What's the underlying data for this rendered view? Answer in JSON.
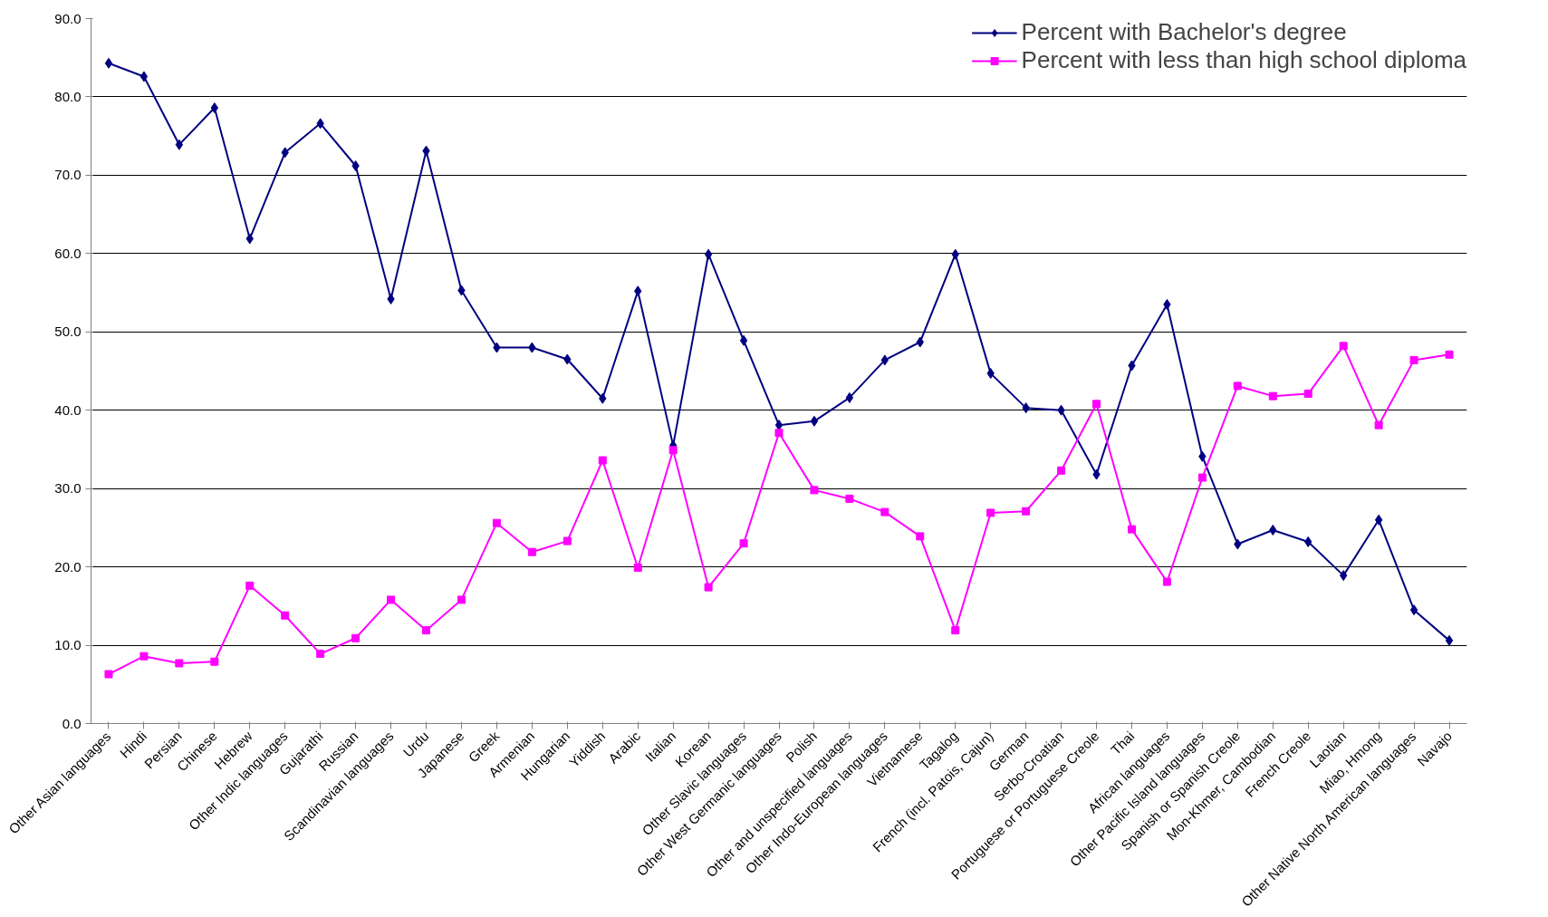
{
  "chart_data": {
    "type": "line",
    "categories": [
      "Other Asian languages",
      "Hindi",
      "Persian",
      "Chinese",
      "Hebrew",
      "Other Indic languages",
      "Gujarathi",
      "Russian",
      "Scandinavian languages",
      "Urdu",
      "Japanese",
      "Greek",
      "Armenian",
      "Hungarian",
      "Yiddish",
      "Arabic",
      "Italian",
      "Korean",
      "Other Slavic languages",
      "Other West Germanic languages",
      "Polish",
      "Other and unspecified languages",
      "Other Indo-European languages",
      "Vietnamese",
      "Tagalog",
      "French (incl. Patois, Cajun)",
      "German",
      "Serbo-Croatian",
      "Portuguese or Portuguese Creole",
      "Thai",
      "African languages",
      "Other Pacific Island languages",
      "Spanish or Spanish Creole",
      "Mon-Khmer, Cambodian",
      "French Creole",
      "Laotian",
      "Miao, Hmong",
      "Other Native North American languages",
      "Navajo"
    ],
    "series": [
      {
        "name": "Percent with Bachelor's degree",
        "color": "#000080",
        "marker": "diamond",
        "values": [
          84.3,
          82.6,
          73.9,
          78.6,
          61.9,
          72.9,
          76.6,
          71.2,
          54.2,
          73.1,
          55.3,
          48.0,
          48.0,
          46.5,
          41.5,
          55.2,
          35.5,
          59.9,
          48.9,
          38.1,
          38.6,
          41.6,
          46.4,
          48.7,
          59.9,
          44.7,
          40.3,
          40.0,
          31.8,
          45.7,
          53.5,
          34.1,
          22.9,
          24.7,
          23.2,
          18.9,
          26.0,
          14.5,
          10.6
        ]
      },
      {
        "name": "Percent with less than high school diploma",
        "color": "#ff00ff",
        "marker": "square",
        "values": [
          6.3,
          8.6,
          7.7,
          7.9,
          17.6,
          13.8,
          8.9,
          10.9,
          15.8,
          11.9,
          15.8,
          25.6,
          21.9,
          23.3,
          33.6,
          19.9,
          34.9,
          17.4,
          23.0,
          37.1,
          29.8,
          28.7,
          27.0,
          23.9,
          11.9,
          26.9,
          27.1,
          32.3,
          40.8,
          24.8,
          18.1,
          31.4,
          43.1,
          41.8,
          42.1,
          48.2,
          38.1,
          46.4,
          47.1
        ]
      }
    ],
    "ylim": [
      0,
      90
    ],
    "yticks": [
      {
        "value": 0,
        "label": "0.0"
      },
      {
        "value": 10,
        "label": "10.0"
      },
      {
        "value": 20,
        "label": "20.0"
      },
      {
        "value": 30,
        "label": "30.0"
      },
      {
        "value": 40,
        "label": "40.0"
      },
      {
        "value": 50,
        "label": "50.0"
      },
      {
        "value": 60,
        "label": "60.0"
      },
      {
        "value": 70,
        "label": "70.0"
      },
      {
        "value": 80,
        "label": "80.0"
      },
      {
        "value": 90,
        "label": "90.0"
      }
    ],
    "grid": "y",
    "legend": "top right"
  }
}
